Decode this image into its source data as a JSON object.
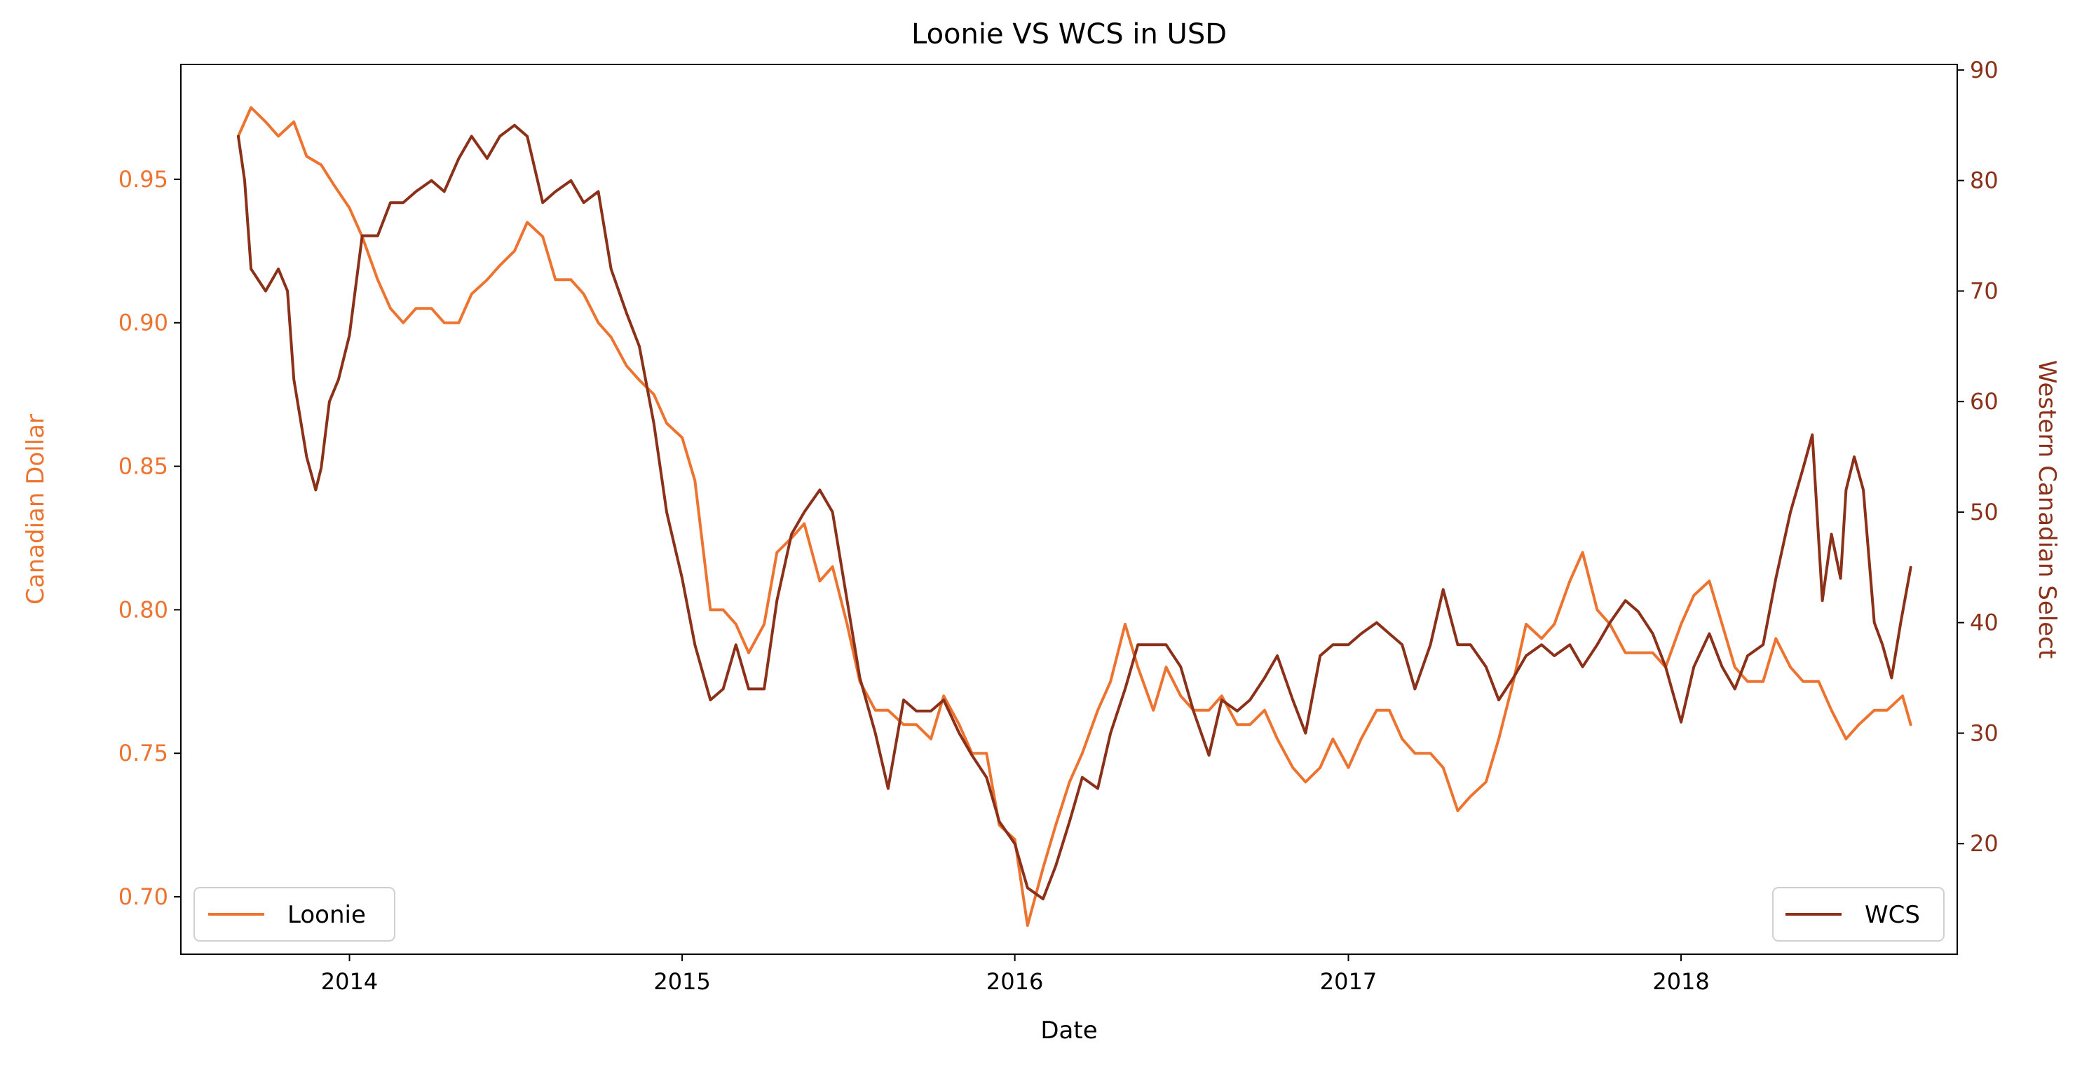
{
  "chart_data": {
    "type": "line",
    "title": "Loonie VS WCS in USD",
    "xlabel": "Date",
    "y_left_label": "Canadian Dollar",
    "y_right_label": "Western Canadian Select",
    "x_ticks": [
      "2014",
      "2015",
      "2016",
      "2017",
      "2018"
    ],
    "x_range": [
      "2013-06-30",
      "2018-10-31"
    ],
    "y_left_range": [
      0.68,
      0.99
    ],
    "y_left_ticks": [
      "0.70",
      "0.75",
      "0.80",
      "0.85",
      "0.90",
      "0.95"
    ],
    "y_right_range": [
      10,
      90.5
    ],
    "y_right_ticks": [
      "20",
      "30",
      "40",
      "50",
      "60",
      "70",
      "80",
      "90"
    ],
    "grid": false,
    "series": [
      {
        "name": "Loonie",
        "axis": "left",
        "color": "#ed7430",
        "legend_position": "lower-left",
        "points": [
          [
            "2013-09-01",
            0.965
          ],
          [
            "2013-09-15",
            0.975
          ],
          [
            "2013-10-01",
            0.97
          ],
          [
            "2013-10-15",
            0.965
          ],
          [
            "2013-11-01",
            0.97
          ],
          [
            "2013-11-15",
            0.958
          ],
          [
            "2013-12-01",
            0.955
          ],
          [
            "2013-12-15",
            0.948
          ],
          [
            "2014-01-01",
            0.94
          ],
          [
            "2014-01-15",
            0.93
          ],
          [
            "2014-02-01",
            0.915
          ],
          [
            "2014-02-15",
            0.905
          ],
          [
            "2014-03-01",
            0.9
          ],
          [
            "2014-03-15",
            0.905
          ],
          [
            "2014-04-01",
            0.905
          ],
          [
            "2014-04-15",
            0.9
          ],
          [
            "2014-05-01",
            0.9
          ],
          [
            "2014-05-15",
            0.91
          ],
          [
            "2014-06-01",
            0.915
          ],
          [
            "2014-06-15",
            0.92
          ],
          [
            "2014-07-01",
            0.925
          ],
          [
            "2014-07-15",
            0.935
          ],
          [
            "2014-08-01",
            0.93
          ],
          [
            "2014-08-15",
            0.915
          ],
          [
            "2014-09-01",
            0.915
          ],
          [
            "2014-09-15",
            0.91
          ],
          [
            "2014-10-01",
            0.9
          ],
          [
            "2014-10-15",
            0.895
          ],
          [
            "2014-11-01",
            0.885
          ],
          [
            "2014-11-15",
            0.88
          ],
          [
            "2014-12-01",
            0.875
          ],
          [
            "2014-12-15",
            0.865
          ],
          [
            "2015-01-01",
            0.86
          ],
          [
            "2015-01-15",
            0.845
          ],
          [
            "2015-02-01",
            0.8
          ],
          [
            "2015-02-15",
            0.8
          ],
          [
            "2015-03-01",
            0.795
          ],
          [
            "2015-03-15",
            0.785
          ],
          [
            "2015-04-01",
            0.795
          ],
          [
            "2015-04-15",
            0.82
          ],
          [
            "2015-05-01",
            0.825
          ],
          [
            "2015-05-15",
            0.83
          ],
          [
            "2015-06-01",
            0.81
          ],
          [
            "2015-06-15",
            0.815
          ],
          [
            "2015-07-01",
            0.795
          ],
          [
            "2015-07-15",
            0.775
          ],
          [
            "2015-08-01",
            0.765
          ],
          [
            "2015-08-15",
            0.765
          ],
          [
            "2015-09-01",
            0.76
          ],
          [
            "2015-09-15",
            0.76
          ],
          [
            "2015-10-01",
            0.755
          ],
          [
            "2015-10-15",
            0.77
          ],
          [
            "2015-11-01",
            0.76
          ],
          [
            "2015-11-15",
            0.75
          ],
          [
            "2015-12-01",
            0.75
          ],
          [
            "2015-12-15",
            0.725
          ],
          [
            "2016-01-01",
            0.72
          ],
          [
            "2016-01-15",
            0.69
          ],
          [
            "2016-02-01",
            0.71
          ],
          [
            "2016-02-15",
            0.725
          ],
          [
            "2016-03-01",
            0.74
          ],
          [
            "2016-03-15",
            0.75
          ],
          [
            "2016-04-01",
            0.765
          ],
          [
            "2016-04-15",
            0.775
          ],
          [
            "2016-05-01",
            0.795
          ],
          [
            "2016-05-15",
            0.78
          ],
          [
            "2016-06-01",
            0.765
          ],
          [
            "2016-06-15",
            0.78
          ],
          [
            "2016-07-01",
            0.77
          ],
          [
            "2016-07-15",
            0.765
          ],
          [
            "2016-08-01",
            0.765
          ],
          [
            "2016-08-15",
            0.77
          ],
          [
            "2016-09-01",
            0.76
          ],
          [
            "2016-09-15",
            0.76
          ],
          [
            "2016-10-01",
            0.765
          ],
          [
            "2016-10-15",
            0.755
          ],
          [
            "2016-11-01",
            0.745
          ],
          [
            "2016-11-15",
            0.74
          ],
          [
            "2016-12-01",
            0.745
          ],
          [
            "2016-12-15",
            0.755
          ],
          [
            "2017-01-01",
            0.745
          ],
          [
            "2017-01-15",
            0.755
          ],
          [
            "2017-02-01",
            0.765
          ],
          [
            "2017-02-15",
            0.765
          ],
          [
            "2017-03-01",
            0.755
          ],
          [
            "2017-03-15",
            0.75
          ],
          [
            "2017-04-01",
            0.75
          ],
          [
            "2017-04-15",
            0.745
          ],
          [
            "2017-05-01",
            0.73
          ],
          [
            "2017-05-15",
            0.735
          ],
          [
            "2017-06-01",
            0.74
          ],
          [
            "2017-06-15",
            0.755
          ],
          [
            "2017-07-01",
            0.775
          ],
          [
            "2017-07-15",
            0.795
          ],
          [
            "2017-08-01",
            0.79
          ],
          [
            "2017-08-15",
            0.795
          ],
          [
            "2017-09-01",
            0.81
          ],
          [
            "2017-09-15",
            0.82
          ],
          [
            "2017-10-01",
            0.8
          ],
          [
            "2017-10-15",
            0.795
          ],
          [
            "2017-11-01",
            0.785
          ],
          [
            "2017-11-15",
            0.785
          ],
          [
            "2017-12-01",
            0.785
          ],
          [
            "2017-12-15",
            0.78
          ],
          [
            "2018-01-01",
            0.795
          ],
          [
            "2018-01-15",
            0.805
          ],
          [
            "2018-02-01",
            0.81
          ],
          [
            "2018-02-15",
            0.795
          ],
          [
            "2018-03-01",
            0.78
          ],
          [
            "2018-03-15",
            0.775
          ],
          [
            "2018-04-01",
            0.775
          ],
          [
            "2018-04-15",
            0.79
          ],
          [
            "2018-05-01",
            0.78
          ],
          [
            "2018-05-15",
            0.775
          ],
          [
            "2018-06-01",
            0.775
          ],
          [
            "2018-06-15",
            0.765
          ],
          [
            "2018-07-01",
            0.755
          ],
          [
            "2018-07-15",
            0.76
          ],
          [
            "2018-08-01",
            0.765
          ],
          [
            "2018-08-15",
            0.765
          ],
          [
            "2018-09-01",
            0.77
          ],
          [
            "2018-09-10",
            0.76
          ]
        ]
      },
      {
        "name": "WCS",
        "axis": "right",
        "color": "#8b311a",
        "legend_position": "lower-right",
        "points": [
          [
            "2013-09-01",
            84
          ],
          [
            "2013-09-08",
            80
          ],
          [
            "2013-09-15",
            72
          ],
          [
            "2013-10-01",
            70
          ],
          [
            "2013-10-15",
            72
          ],
          [
            "2013-10-25",
            70
          ],
          [
            "2013-11-01",
            62
          ],
          [
            "2013-11-15",
            55
          ],
          [
            "2013-11-25",
            52
          ],
          [
            "2013-12-01",
            54
          ],
          [
            "2013-12-10",
            60
          ],
          [
            "2013-12-20",
            62
          ],
          [
            "2014-01-01",
            66
          ],
          [
            "2014-01-15",
            75
          ],
          [
            "2014-02-01",
            75
          ],
          [
            "2014-02-15",
            78
          ],
          [
            "2014-03-01",
            78
          ],
          [
            "2014-03-15",
            79
          ],
          [
            "2014-04-01",
            80
          ],
          [
            "2014-04-15",
            79
          ],
          [
            "2014-05-01",
            82
          ],
          [
            "2014-05-15",
            84
          ],
          [
            "2014-06-01",
            82
          ],
          [
            "2014-06-15",
            84
          ],
          [
            "2014-07-01",
            85
          ],
          [
            "2014-07-15",
            84
          ],
          [
            "2014-08-01",
            78
          ],
          [
            "2014-08-15",
            79
          ],
          [
            "2014-09-01",
            80
          ],
          [
            "2014-09-15",
            78
          ],
          [
            "2014-10-01",
            79
          ],
          [
            "2014-10-15",
            72
          ],
          [
            "2014-11-01",
            68
          ],
          [
            "2014-11-15",
            65
          ],
          [
            "2014-12-01",
            58
          ],
          [
            "2014-12-15",
            50
          ],
          [
            "2015-01-01",
            44
          ],
          [
            "2015-01-15",
            38
          ],
          [
            "2015-02-01",
            33
          ],
          [
            "2015-02-15",
            34
          ],
          [
            "2015-03-01",
            38
          ],
          [
            "2015-03-15",
            34
          ],
          [
            "2015-04-01",
            34
          ],
          [
            "2015-04-15",
            42
          ],
          [
            "2015-05-01",
            48
          ],
          [
            "2015-05-15",
            50
          ],
          [
            "2015-06-01",
            52
          ],
          [
            "2015-06-15",
            50
          ],
          [
            "2015-07-01",
            42
          ],
          [
            "2015-07-15",
            35
          ],
          [
            "2015-08-01",
            30
          ],
          [
            "2015-08-15",
            25
          ],
          [
            "2015-09-01",
            33
          ],
          [
            "2015-09-15",
            32
          ],
          [
            "2015-10-01",
            32
          ],
          [
            "2015-10-15",
            33
          ],
          [
            "2015-11-01",
            30
          ],
          [
            "2015-11-15",
            28
          ],
          [
            "2015-12-01",
            26
          ],
          [
            "2015-12-15",
            22
          ],
          [
            "2016-01-01",
            20
          ],
          [
            "2016-01-15",
            16
          ],
          [
            "2016-02-01",
            15
          ],
          [
            "2016-02-15",
            18
          ],
          [
            "2016-03-01",
            22
          ],
          [
            "2016-03-15",
            26
          ],
          [
            "2016-04-01",
            25
          ],
          [
            "2016-04-15",
            30
          ],
          [
            "2016-05-01",
            34
          ],
          [
            "2016-05-15",
            38
          ],
          [
            "2016-06-01",
            38
          ],
          [
            "2016-06-15",
            38
          ],
          [
            "2016-07-01",
            36
          ],
          [
            "2016-07-15",
            32
          ],
          [
            "2016-08-01",
            28
          ],
          [
            "2016-08-15",
            33
          ],
          [
            "2016-09-01",
            32
          ],
          [
            "2016-09-15",
            33
          ],
          [
            "2016-10-01",
            35
          ],
          [
            "2016-10-15",
            37
          ],
          [
            "2016-11-01",
            33
          ],
          [
            "2016-11-15",
            30
          ],
          [
            "2016-12-01",
            37
          ],
          [
            "2016-12-15",
            38
          ],
          [
            "2017-01-01",
            38
          ],
          [
            "2017-01-15",
            39
          ],
          [
            "2017-02-01",
            40
          ],
          [
            "2017-02-15",
            39
          ],
          [
            "2017-03-01",
            38
          ],
          [
            "2017-03-15",
            34
          ],
          [
            "2017-04-01",
            38
          ],
          [
            "2017-04-15",
            43
          ],
          [
            "2017-05-01",
            38
          ],
          [
            "2017-05-15",
            38
          ],
          [
            "2017-06-01",
            36
          ],
          [
            "2017-06-15",
            33
          ],
          [
            "2017-07-01",
            35
          ],
          [
            "2017-07-15",
            37
          ],
          [
            "2017-08-01",
            38
          ],
          [
            "2017-08-15",
            37
          ],
          [
            "2017-09-01",
            38
          ],
          [
            "2017-09-15",
            36
          ],
          [
            "2017-10-01",
            38
          ],
          [
            "2017-10-15",
            40
          ],
          [
            "2017-11-01",
            42
          ],
          [
            "2017-11-15",
            41
          ],
          [
            "2017-12-01",
            39
          ],
          [
            "2017-12-15",
            36
          ],
          [
            "2018-01-01",
            31
          ],
          [
            "2018-01-15",
            36
          ],
          [
            "2018-02-01",
            39
          ],
          [
            "2018-02-15",
            36
          ],
          [
            "2018-03-01",
            34
          ],
          [
            "2018-03-15",
            37
          ],
          [
            "2018-04-01",
            38
          ],
          [
            "2018-04-15",
            44
          ],
          [
            "2018-05-01",
            50
          ],
          [
            "2018-05-15",
            54
          ],
          [
            "2018-05-25",
            57
          ],
          [
            "2018-06-05",
            42
          ],
          [
            "2018-06-15",
            48
          ],
          [
            "2018-06-25",
            44
          ],
          [
            "2018-07-01",
            52
          ],
          [
            "2018-07-10",
            55
          ],
          [
            "2018-07-20",
            52
          ],
          [
            "2018-08-01",
            40
          ],
          [
            "2018-08-10",
            38
          ],
          [
            "2018-08-20",
            35
          ],
          [
            "2018-08-30",
            40
          ],
          [
            "2018-09-10",
            45
          ]
        ]
      }
    ]
  }
}
